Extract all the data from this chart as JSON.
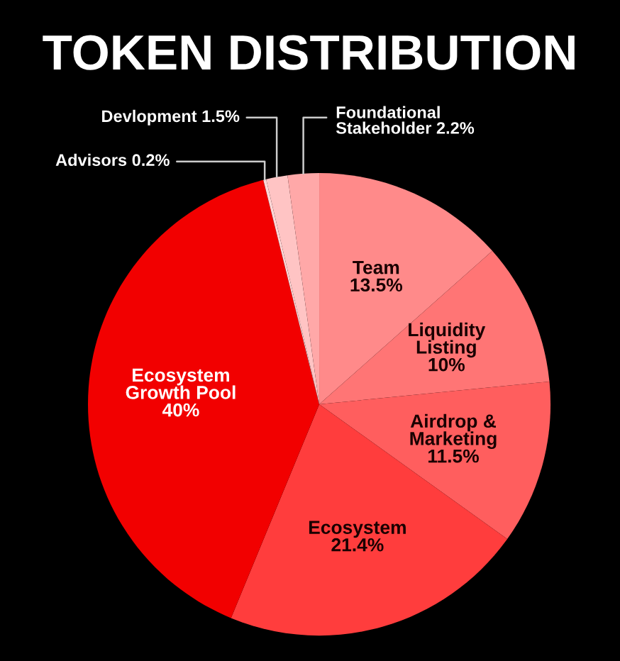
{
  "chart_data": {
    "type": "pie",
    "title": "TOKEN DISTRIBUTION",
    "categories": [
      "Team",
      "Liquidity\nListing",
      "Airdrop &\nMarketing",
      "Ecosystem",
      "Ecosystem\nGrowth Pool",
      "Advisors",
      "Devlopment",
      "Foundational\nStakeholder"
    ],
    "values": [
      13.5,
      10,
      11.5,
      21.4,
      40,
      0.2,
      1.5,
      2.2
    ],
    "value_labels": [
      "13.5%",
      "10%",
      "11.5%",
      "21.4%",
      "40%",
      "0.2%",
      "1.5%",
      "2.2%"
    ],
    "colors": [
      "#ff8a8a",
      "#ff7575",
      "#ff5e5e",
      "#ff3d3d",
      "#f20000",
      "#ffd6d6",
      "#ffc4c4",
      "#ffa8a8"
    ],
    "legend": false
  }
}
